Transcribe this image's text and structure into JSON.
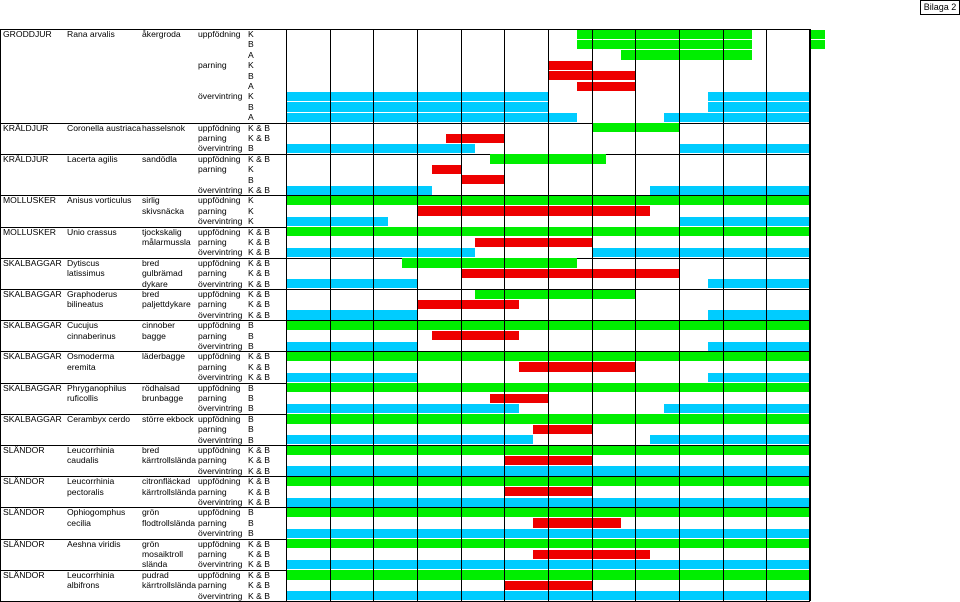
{
  "tab_label": "Bilaga 2",
  "colors": {
    "uppfodning": "#00ee00",
    "parning": "#ee0000",
    "overvintring": "#00ccff"
  },
  "groups": [
    {
      "category": "GRODDJUR",
      "latin": [
        "Rana arvalis"
      ],
      "swedish": [
        "åkergroda"
      ],
      "rows": [
        {
          "activity": "uppfödning",
          "code": "K",
          "bars": [
            [
              20,
              32
            ],
            [
              36,
              37
            ]
          ]
        },
        {
          "activity": "",
          "code": "B",
          "bars": [
            [
              20,
              32
            ],
            [
              36,
              37
            ]
          ]
        },
        {
          "activity": "",
          "code": "A",
          "bars": [
            [
              23,
              32
            ]
          ]
        },
        {
          "activity": "parning",
          "code": "K",
          "bars": [
            [
              18,
              21
            ]
          ]
        },
        {
          "activity": "",
          "code": "B",
          "bars": [
            [
              18,
              24
            ]
          ]
        },
        {
          "activity": "",
          "code": "A",
          "bars": [
            [
              20,
              24
            ]
          ]
        },
        {
          "activity": "övervintring",
          "code": "K",
          "bars": [
            [
              0,
              18
            ],
            [
              29,
              36
            ]
          ]
        },
        {
          "activity": "",
          "code": "B",
          "bars": [
            [
              0,
              18
            ],
            [
              29,
              36
            ]
          ]
        },
        {
          "activity": "",
          "code": "A",
          "bars": [
            [
              0,
              20
            ],
            [
              26,
              36
            ]
          ]
        }
      ]
    },
    {
      "category": "KRÄLDJUR",
      "latin": [
        "Coronella austriaca"
      ],
      "swedish": [
        "hasselsnok"
      ],
      "rows": [
        {
          "activity": "uppfödning",
          "code": "K & B",
          "bars": [
            [
              21,
              27
            ]
          ]
        },
        {
          "activity": "parning",
          "code": "K & B",
          "bars": [
            [
              11,
              15
            ]
          ]
        },
        {
          "activity": "övervintring",
          "code": "B",
          "bars": [
            [
              0,
              13
            ],
            [
              27,
              36
            ]
          ]
        }
      ]
    },
    {
      "category": "KRÄLDJUR",
      "latin": [
        "Lacerta agilis"
      ],
      "swedish": [
        "sandödla"
      ],
      "rows": [
        {
          "activity": "uppfödning",
          "code": "K & B",
          "bars": [
            [
              14,
              22
            ]
          ]
        },
        {
          "activity": "parning",
          "code": "K",
          "bars": [
            [
              10,
              12
            ]
          ]
        },
        {
          "activity": "",
          "code": "B",
          "bars": [
            [
              12,
              15
            ]
          ]
        },
        {
          "activity": "övervintring",
          "code": "K & B",
          "bars": [
            [
              0,
              10
            ],
            [
              25,
              36
            ]
          ]
        }
      ]
    },
    {
      "category": "MOLLUSKER",
      "latin": [
        "Anisus vorticulus"
      ],
      "swedish": [
        "sirlig",
        "skivsnäcka"
      ],
      "rows": [
        {
          "activity": "uppfödning",
          "code": "K",
          "bars": [
            [
              0,
              36
            ]
          ]
        },
        {
          "activity": "parning",
          "code": "K",
          "bars": [
            [
              9,
              25
            ]
          ]
        },
        {
          "activity": "övervintring",
          "code": "K",
          "bars": [
            [
              0,
              7
            ],
            [
              27,
              36
            ]
          ]
        }
      ]
    },
    {
      "category": "MOLLUSKER",
      "latin": [
        "Unio crassus"
      ],
      "swedish": [
        "tjockskalig",
        "målarmussla"
      ],
      "rows": [
        {
          "activity": "uppfödning",
          "code": "K & B",
          "bars": [
            [
              0,
              36
            ]
          ]
        },
        {
          "activity": "parning",
          "code": "K & B",
          "bars": [
            [
              13,
              21
            ]
          ]
        },
        {
          "activity": "övervintring",
          "code": "K & B",
          "bars": [
            [
              0,
              13
            ],
            [
              21,
              36
            ]
          ]
        }
      ]
    },
    {
      "category": "SKALBAGGAR",
      "latin": [
        "Dytiscus",
        "latissimus"
      ],
      "swedish": [
        "bred",
        "gulbrämad",
        "dykare"
      ],
      "rows": [
        {
          "activity": "uppfödning",
          "code": "K & B",
          "bars": [
            [
              8,
              20
            ]
          ]
        },
        {
          "activity": "parning",
          "code": "K & B",
          "bars": [
            [
              12,
              27
            ]
          ]
        },
        {
          "activity": "övervintring",
          "code": "K & B",
          "bars": [
            [
              0,
              9
            ],
            [
              29,
              36
            ]
          ]
        }
      ]
    },
    {
      "category": "SKALBAGGAR",
      "latin": [
        "Graphoderus",
        "bilineatus"
      ],
      "swedish": [
        "bred",
        "paljettdykare"
      ],
      "rows": [
        {
          "activity": "uppfödning",
          "code": "K & B",
          "bars": [
            [
              13,
              24
            ]
          ]
        },
        {
          "activity": "parning",
          "code": "K & B",
          "bars": [
            [
              9,
              16
            ]
          ]
        },
        {
          "activity": "övervintring",
          "code": "K & B",
          "bars": [
            [
              0,
              9
            ],
            [
              29,
              36
            ]
          ]
        }
      ]
    },
    {
      "category": "SKALBAGGAR",
      "latin": [
        "Cucujus",
        "cinnaberinus"
      ],
      "swedish": [
        "cinnober",
        "bagge"
      ],
      "rows": [
        {
          "activity": "uppfödning",
          "code": "B",
          "bars": [
            [
              0,
              36
            ]
          ]
        },
        {
          "activity": "parning",
          "code": "B",
          "bars": [
            [
              10,
              16
            ]
          ]
        },
        {
          "activity": "övervintring",
          "code": "B",
          "bars": [
            [
              0,
              9
            ],
            [
              29,
              36
            ]
          ]
        }
      ]
    },
    {
      "category": "SKALBAGGAR",
      "latin": [
        "Osmoderma",
        "eremita"
      ],
      "swedish": [
        "läderbagge"
      ],
      "rows": [
        {
          "activity": "uppfödning",
          "code": "K & B",
          "bars": [
            [
              0,
              36
            ]
          ]
        },
        {
          "activity": "parning",
          "code": "K & B",
          "bars": [
            [
              16,
              24
            ]
          ]
        },
        {
          "activity": "övervintring",
          "code": "K & B",
          "bars": [
            [
              0,
              9
            ],
            [
              29,
              36
            ]
          ]
        }
      ]
    },
    {
      "category": "SKALBAGGAR",
      "latin": [
        "Phryganophilus",
        "ruficollis"
      ],
      "swedish": [
        "rödhalsad",
        "brunbagge"
      ],
      "rows": [
        {
          "activity": "uppfödning",
          "code": "B",
          "bars": [
            [
              0,
              36
            ]
          ]
        },
        {
          "activity": "parning",
          "code": "B",
          "bars": [
            [
              14,
              18
            ]
          ]
        },
        {
          "activity": "övervintring",
          "code": "B",
          "bars": [
            [
              0,
              16
            ],
            [
              26,
              36
            ]
          ]
        }
      ]
    },
    {
      "category": "SKALBAGGAR",
      "latin": [
        "Cerambyx cerdo"
      ],
      "swedish": [
        "större ekbock"
      ],
      "rows": [
        {
          "activity": "uppfödning",
          "code": "B",
          "bars": [
            [
              0,
              36
            ]
          ]
        },
        {
          "activity": "parning",
          "code": "B",
          "bars": [
            [
              17,
              21
            ]
          ]
        },
        {
          "activity": "övervintring",
          "code": "B",
          "bars": [
            [
              0,
              17
            ],
            [
              25,
              36
            ]
          ]
        }
      ]
    },
    {
      "category": "SLÄNDOR",
      "latin": [
        "Leucorrhinia",
        "caudalis"
      ],
      "swedish": [
        "bred",
        "kärrtrollslända"
      ],
      "rows": [
        {
          "activity": "uppfödning",
          "code": "K & B",
          "bars": [
            [
              0,
              36
            ]
          ]
        },
        {
          "activity": "parning",
          "code": "K & B",
          "bars": [
            [
              15,
              21
            ]
          ]
        },
        {
          "activity": "övervintring",
          "code": "K & B",
          "bars": [
            [
              0,
              36
            ]
          ]
        }
      ]
    },
    {
      "category": "SLÄNDOR",
      "latin": [
        "Leucorrhinia",
        "pectoralis"
      ],
      "swedish": [
        "citronfläckad",
        "kärrtrollslända"
      ],
      "rows": [
        {
          "activity": "uppfödning",
          "code": "K & B",
          "bars": [
            [
              0,
              36
            ]
          ]
        },
        {
          "activity": "parning",
          "code": "K & B",
          "bars": [
            [
              15,
              21
            ]
          ]
        },
        {
          "activity": "övervintring",
          "code": "K & B",
          "bars": [
            [
              0,
              36
            ]
          ]
        }
      ]
    },
    {
      "category": "SLÄNDOR",
      "latin": [
        "Ophiogomphus",
        "cecilia"
      ],
      "swedish": [
        "grön",
        "flodtrollslända"
      ],
      "rows": [
        {
          "activity": "uppfödning",
          "code": "B",
          "bars": [
            [
              0,
              36
            ]
          ]
        },
        {
          "activity": "parning",
          "code": "B",
          "bars": [
            [
              17,
              23
            ]
          ]
        },
        {
          "activity": "övervintring",
          "code": "B",
          "bars": [
            [
              0,
              36
            ]
          ]
        }
      ]
    },
    {
      "category": "SLÄNDOR",
      "latin": [
        "Aeshna viridis"
      ],
      "swedish": [
        "grön",
        "mosaiktroll",
        "slända"
      ],
      "rows": [
        {
          "activity": "uppfödning",
          "code": "K & B",
          "bars": [
            [
              0,
              36
            ]
          ]
        },
        {
          "activity": "parning",
          "code": "K & B",
          "bars": [
            [
              17,
              25
            ]
          ]
        },
        {
          "activity": "övervintring",
          "code": "K & B",
          "bars": [
            [
              0,
              36
            ]
          ]
        }
      ]
    },
    {
      "category": "SLÄNDOR",
      "latin": [
        "Leucorrhinia",
        "albifrons"
      ],
      "swedish": [
        "pudrad",
        "kärrtrollslända"
      ],
      "rows": [
        {
          "activity": "uppfödning",
          "code": "K & B",
          "bars": [
            [
              0,
              36
            ]
          ]
        },
        {
          "activity": "parning",
          "code": "K & B",
          "bars": [
            [
              15,
              21
            ]
          ]
        },
        {
          "activity": "övervintring",
          "code": "K & B",
          "bars": [
            [
              0,
              36
            ]
          ]
        }
      ]
    }
  ]
}
